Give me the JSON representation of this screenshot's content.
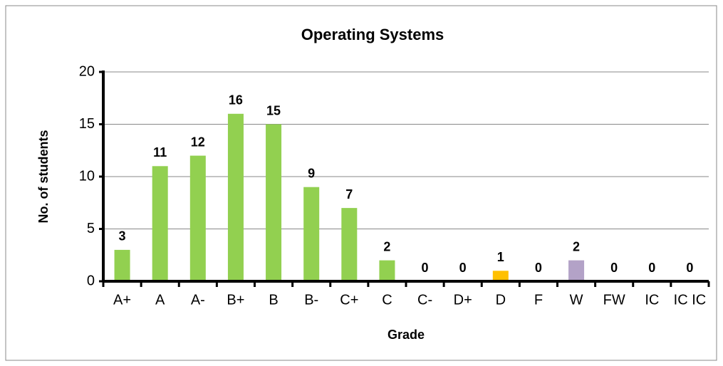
{
  "chart_data": {
    "type": "bar",
    "title": "Operating Systems",
    "xlabel": "Grade",
    "ylabel": "No. of students",
    "categories": [
      "A+",
      "A",
      "A-",
      "B+",
      "B",
      "B-",
      "C+",
      "C",
      "C-",
      "D+",
      "D",
      "F",
      "W",
      "FW",
      "IC",
      "IC IC"
    ],
    "values": [
      3,
      11,
      12,
      16,
      15,
      9,
      7,
      2,
      0,
      0,
      1,
      0,
      2,
      0,
      0,
      0
    ],
    "colors": [
      "#92d050",
      "#92d050",
      "#92d050",
      "#92d050",
      "#92d050",
      "#92d050",
      "#92d050",
      "#92d050",
      "#92d050",
      "#92d050",
      "#ffc000",
      "#92d050",
      "#b3a2c7",
      "#92d050",
      "#92d050",
      "#92d050"
    ],
    "ylim": [
      0,
      20
    ],
    "yticks": [
      0,
      5,
      10,
      15,
      20
    ],
    "grid": true
  }
}
